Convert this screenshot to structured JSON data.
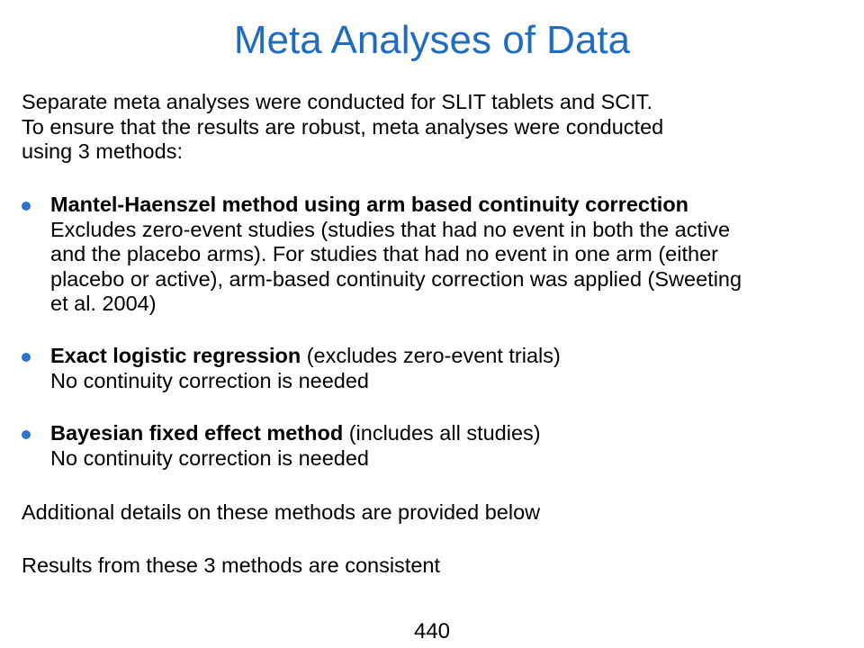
{
  "slide": {
    "title": "Meta Analyses of Data",
    "intro_lines": [
      "Separate meta analyses were conducted for SLIT tablets and SCIT.",
      "To ensure that the results are robust, meta analyses were conducted",
      "using 3 methods:"
    ],
    "bullets": [
      {
        "heading": "Mantel-Haenszel method using arm based continuity correction",
        "heading_suffix": "",
        "lines": [
          "Excludes zero-event studies (studies that had no event in both the active",
          "and the placebo arms). For studies that had no event in one arm (either",
          "placebo or active), arm-based continuity correction was applied (Sweeting",
          "et al. 2004)"
        ]
      },
      {
        "heading": "Exact logistic regression",
        "heading_suffix": " (excludes zero-event trials)",
        "lines": [
          "No continuity correction is needed"
        ]
      },
      {
        "heading": "Bayesian fixed effect method",
        "heading_suffix": " (includes all studies)",
        "lines": [
          "No continuity correction is needed"
        ]
      }
    ],
    "additional_text": "Additional details on these methods are provided below",
    "conclusion_text": "Results from these 3 methods are consistent",
    "page_number": "440"
  },
  "colors": {
    "title": "#1f6cc1",
    "bullet": "#2e75c9",
    "text": "#000000",
    "background": "#ffffff"
  }
}
